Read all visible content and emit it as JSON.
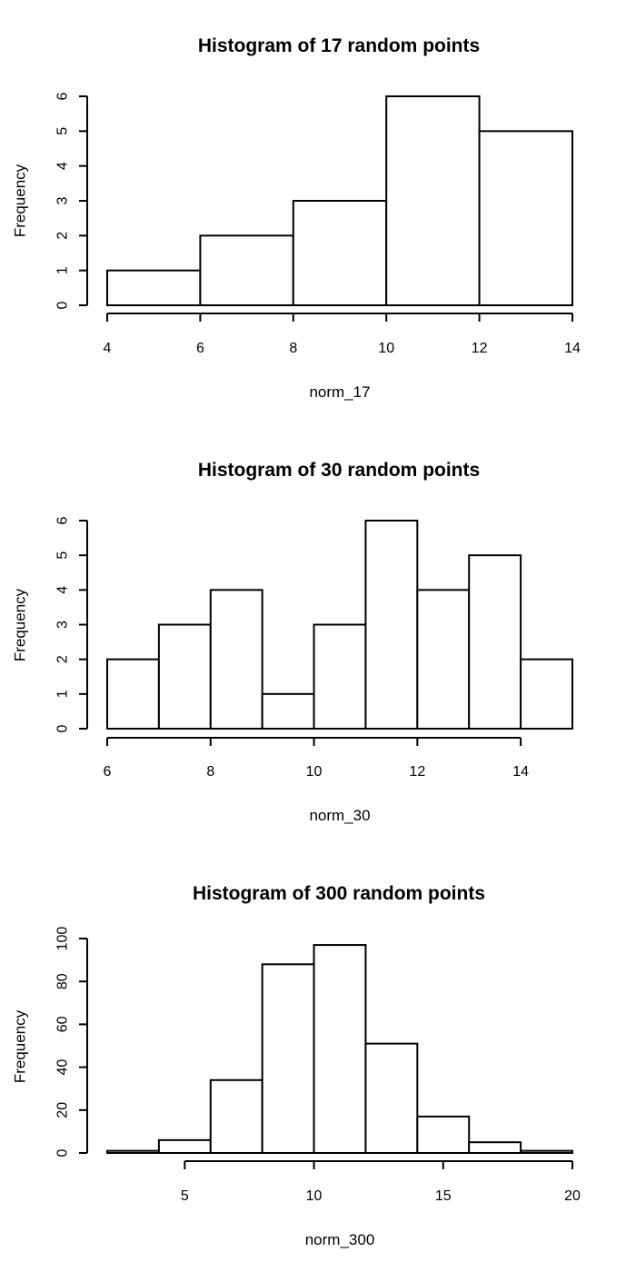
{
  "chart_data": [
    {
      "type": "bar",
      "title": "Histogram of 17 random points",
      "xlabel": "norm_17",
      "ylabel": "Frequency",
      "bin_edges": [
        4,
        6,
        8,
        10,
        12,
        14
      ],
      "values": [
        1,
        2,
        3,
        6,
        5
      ],
      "xticks": [
        4,
        6,
        8,
        10,
        12,
        14
      ],
      "yticks": [
        0,
        1,
        2,
        3,
        4,
        5,
        6
      ],
      "xlim": [
        4,
        14
      ],
      "ylim": [
        0,
        6
      ],
      "x_axis_range": [
        4,
        14
      ],
      "grid": false
    },
    {
      "type": "bar",
      "title": "Histogram of 30 random points",
      "xlabel": "norm_30",
      "ylabel": "Frequency",
      "bin_edges": [
        6,
        7,
        8,
        9,
        10,
        11,
        12,
        13,
        14,
        15
      ],
      "values": [
        2,
        3,
        4,
        1,
        3,
        6,
        4,
        5,
        2
      ],
      "xticks": [
        6,
        8,
        10,
        12,
        14
      ],
      "yticks": [
        0,
        1,
        2,
        3,
        4,
        5,
        6
      ],
      "xlim": [
        6,
        15
      ],
      "ylim": [
        0,
        6
      ],
      "x_axis_range": [
        6,
        14
      ],
      "grid": false
    },
    {
      "type": "bar",
      "title": "Histogram of 300 random points",
      "xlabel": "norm_300",
      "ylabel": "Frequency",
      "bin_edges": [
        2,
        4,
        6,
        8,
        10,
        12,
        14,
        16,
        18,
        20
      ],
      "values": [
        1,
        6,
        34,
        88,
        97,
        51,
        17,
        5,
        1
      ],
      "xticks": [
        5,
        10,
        15,
        20
      ],
      "yticks": [
        0,
        20,
        40,
        60,
        80,
        100
      ],
      "xlim": [
        2,
        20
      ],
      "ylim": [
        0,
        100
      ],
      "x_axis_range": [
        5,
        20
      ],
      "grid": false
    }
  ]
}
